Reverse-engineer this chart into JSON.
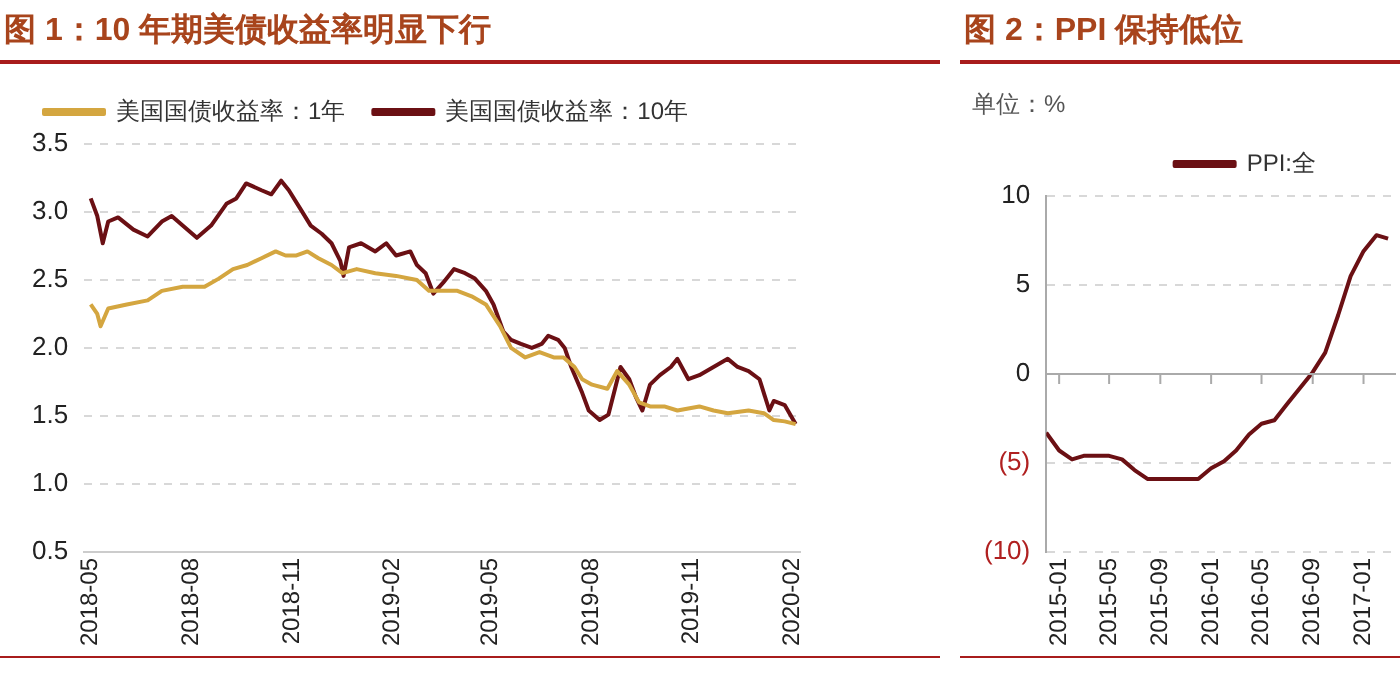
{
  "chart_data": [
    {
      "type": "line",
      "title": "图 1：10 年期美债收益率明显下行",
      "legend": "top left",
      "grid": "y",
      "xlim": [
        "2018-04-25",
        "2020-02-08"
      ],
      "xticks": [
        "2018-05",
        "2018-08",
        "2018-11",
        "2019-02",
        "2019-05",
        "2019-08",
        "2019-11",
        "2020-02"
      ],
      "ylim": [
        0.5,
        3.5
      ],
      "yticks": [
        0.5,
        {
          "value": 1,
          "label": "1.0"
        },
        1.5,
        {
          "value": 2,
          "label": "2.0"
        },
        2.5,
        {
          "value": 3,
          "label": "3.0"
        },
        3.5
      ],
      "series": [
        {
          "name": "美国国债收益率：1年",
          "color": "#d4a640",
          "x": [
            "2018-05-01",
            "2018-05-07",
            "2018-05-10",
            "2018-05-17",
            "2018-06-03",
            "2018-06-22",
            "2018-07-05",
            "2018-07-24",
            "2018-08-13",
            "2018-08-26",
            "2018-09-08",
            "2018-09-21",
            "2018-10-04",
            "2018-10-17",
            "2018-10-26",
            "2018-11-05",
            "2018-11-15",
            "2018-11-25",
            "2018-12-07",
            "2018-12-17",
            "2018-12-30",
            "2019-01-16",
            "2019-02-04",
            "2019-02-23",
            "2019-03-06",
            "2019-03-19",
            "2019-04-01",
            "2019-04-14",
            "2019-04-27",
            "2019-05-10",
            "2019-05-20",
            "2019-06-02",
            "2019-06-15",
            "2019-06-28",
            "2019-07-07",
            "2019-07-17",
            "2019-07-24",
            "2019-08-02",
            "2019-08-16",
            "2019-08-25",
            "2019-09-05",
            "2019-09-14",
            "2019-09-24",
            "2019-10-07",
            "2019-10-19",
            "2019-11-08",
            "2019-11-21",
            "2019-12-04",
            "2019-12-23",
            "2020-01-06",
            "2020-01-15",
            "2020-01-25",
            "2020-02-04"
          ],
          "values": [
            2.32,
            2.25,
            2.16,
            2.29,
            2.32,
            2.35,
            2.42,
            2.45,
            2.45,
            2.51,
            2.58,
            2.61,
            2.66,
            2.71,
            2.68,
            2.68,
            2.71,
            2.66,
            2.61,
            2.55,
            2.58,
            2.55,
            2.53,
            2.5,
            2.42,
            2.42,
            2.42,
            2.38,
            2.32,
            2.16,
            2.0,
            1.93,
            1.97,
            1.93,
            1.93,
            1.86,
            1.77,
            1.73,
            1.7,
            1.83,
            1.73,
            1.6,
            1.57,
            1.57,
            1.54,
            1.57,
            1.54,
            1.52,
            1.54,
            1.52,
            1.47,
            1.46,
            1.44
          ]
        },
        {
          "name": "美国国债收益率：10年",
          "color": "#6b1014",
          "x": [
            "2018-05-01",
            "2018-05-07",
            "2018-05-12",
            "2018-05-17",
            "2018-05-26",
            "2018-06-09",
            "2018-06-22",
            "2018-07-05",
            "2018-07-14",
            "2018-07-24",
            "2018-08-06",
            "2018-08-19",
            "2018-09-02",
            "2018-09-11",
            "2018-09-20",
            "2018-10-04",
            "2018-10-13",
            "2018-10-22",
            "2018-10-29",
            "2018-11-08",
            "2018-11-18",
            "2018-11-28",
            "2018-12-07",
            "2018-12-15",
            "2018-12-18",
            "2018-12-23",
            "2019-01-03",
            "2019-01-16",
            "2019-01-26",
            "2019-02-04",
            "2019-02-17",
            "2019-02-23",
            "2019-03-03",
            "2019-03-10",
            "2019-03-19",
            "2019-03-29",
            "2019-04-08",
            "2019-04-17",
            "2019-04-27",
            "2019-05-04",
            "2019-05-13",
            "2019-05-20",
            "2019-05-29",
            "2019-06-08",
            "2019-06-17",
            "2019-06-23",
            "2019-07-02",
            "2019-07-08",
            "2019-07-14",
            "2019-07-24",
            "2019-07-30",
            "2019-08-09",
            "2019-08-17",
            "2019-08-23",
            "2019-08-28",
            "2019-09-05",
            "2019-09-11",
            "2019-09-17",
            "2019-09-24",
            "2019-10-03",
            "2019-10-13",
            "2019-10-19",
            "2019-10-29",
            "2019-11-08",
            "2019-11-21",
            "2019-12-04",
            "2019-12-13",
            "2019-12-23",
            "2020-01-02",
            "2020-01-11",
            "2020-01-15",
            "2020-01-25",
            "2020-02-04"
          ],
          "values": [
            3.1,
            2.97,
            2.77,
            2.93,
            2.96,
            2.87,
            2.82,
            2.93,
            2.97,
            2.9,
            2.81,
            2.9,
            3.06,
            3.1,
            3.21,
            3.16,
            3.13,
            3.23,
            3.16,
            3.03,
            2.9,
            2.84,
            2.77,
            2.64,
            2.53,
            2.74,
            2.77,
            2.71,
            2.77,
            2.68,
            2.71,
            2.61,
            2.55,
            2.4,
            2.48,
            2.58,
            2.55,
            2.51,
            2.42,
            2.32,
            2.12,
            2.06,
            2.03,
            2.0,
            2.03,
            2.09,
            2.06,
            2.0,
            1.86,
            1.67,
            1.54,
            1.47,
            1.51,
            1.7,
            1.86,
            1.77,
            1.64,
            1.54,
            1.73,
            1.8,
            1.86,
            1.92,
            1.77,
            1.8,
            1.86,
            1.92,
            1.86,
            1.83,
            1.77,
            1.54,
            1.61,
            1.58,
            1.44
          ]
        }
      ]
    },
    {
      "type": "line",
      "title": "图 2：PPI 保持低位",
      "ylabel": "单位：%",
      "legend": "top right",
      "grid": "y",
      "xlim": [
        "2014-12-01",
        "2017-03-20"
      ],
      "xticks": [
        "2015-01",
        "2015-05",
        "2015-09",
        "2016-01",
        "2016-05",
        "2016-09",
        "2017-01"
      ],
      "ylim": [
        -10,
        10
      ],
      "yticks": [
        {
          "value": -10,
          "label": "(10)"
        },
        {
          "value": -5,
          "label": "(5)"
        },
        0,
        5,
        10
      ],
      "series": [
        {
          "name": "PPI:全",
          "color": "#6b1014",
          "x": [
            "2014-12",
            "2015-01",
            "2015-02",
            "2015-03",
            "2015-04",
            "2015-05",
            "2015-06",
            "2015-07",
            "2015-08",
            "2015-09",
            "2015-10",
            "2015-11",
            "2015-12",
            "2016-01",
            "2016-02",
            "2016-03",
            "2016-04",
            "2016-05",
            "2016-06",
            "2016-07",
            "2016-08",
            "2016-09",
            "2016-10",
            "2016-11",
            "2016-12",
            "2017-01",
            "2017-02",
            "2017-03"
          ],
          "values": [
            -3.3,
            -4.3,
            -4.8,
            -4.6,
            -4.6,
            -4.6,
            -4.8,
            -5.4,
            -5.9,
            -5.9,
            -5.9,
            -5.9,
            -5.9,
            -5.3,
            -4.9,
            -4.3,
            -3.4,
            -2.8,
            -2.6,
            -1.7,
            -0.8,
            0.1,
            1.2,
            3.3,
            5.5,
            6.9,
            7.8,
            7.6
          ]
        }
      ]
    }
  ]
}
